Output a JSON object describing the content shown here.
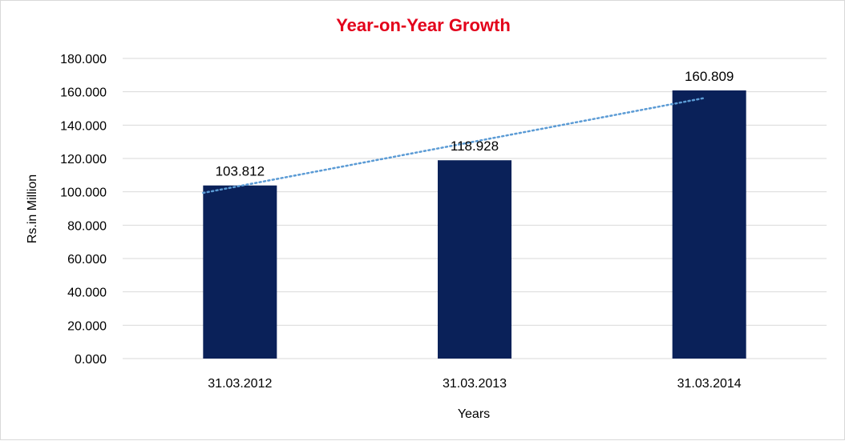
{
  "colors": {
    "title": "#e3001b",
    "bar": "#0a2159",
    "trendline": "#5b9bd5",
    "grid": "#d9d9d9"
  },
  "chart_data": {
    "type": "bar",
    "title": "Year-on-Year Growth",
    "xlabel": "Years",
    "ylabel": "Rs.in Million",
    "categories": [
      "31.03.2012",
      "31.03.2013",
      "31.03.2014"
    ],
    "values": [
      103.812,
      118.928,
      160.809
    ],
    "data_labels": [
      "103.812",
      "118.928",
      "160.809"
    ],
    "ylim": [
      0,
      180
    ],
    "yticks": [
      0,
      20,
      40,
      60,
      80,
      100,
      120,
      140,
      160,
      180
    ],
    "ytick_labels": [
      "0.000",
      "20.000",
      "40.000",
      "60.000",
      "80.000",
      "100.000",
      "120.000",
      "140.000",
      "160.000",
      "180.000"
    ],
    "grid": true,
    "legend": "none",
    "trendline": {
      "type": "linear",
      "style": "dotted"
    }
  }
}
